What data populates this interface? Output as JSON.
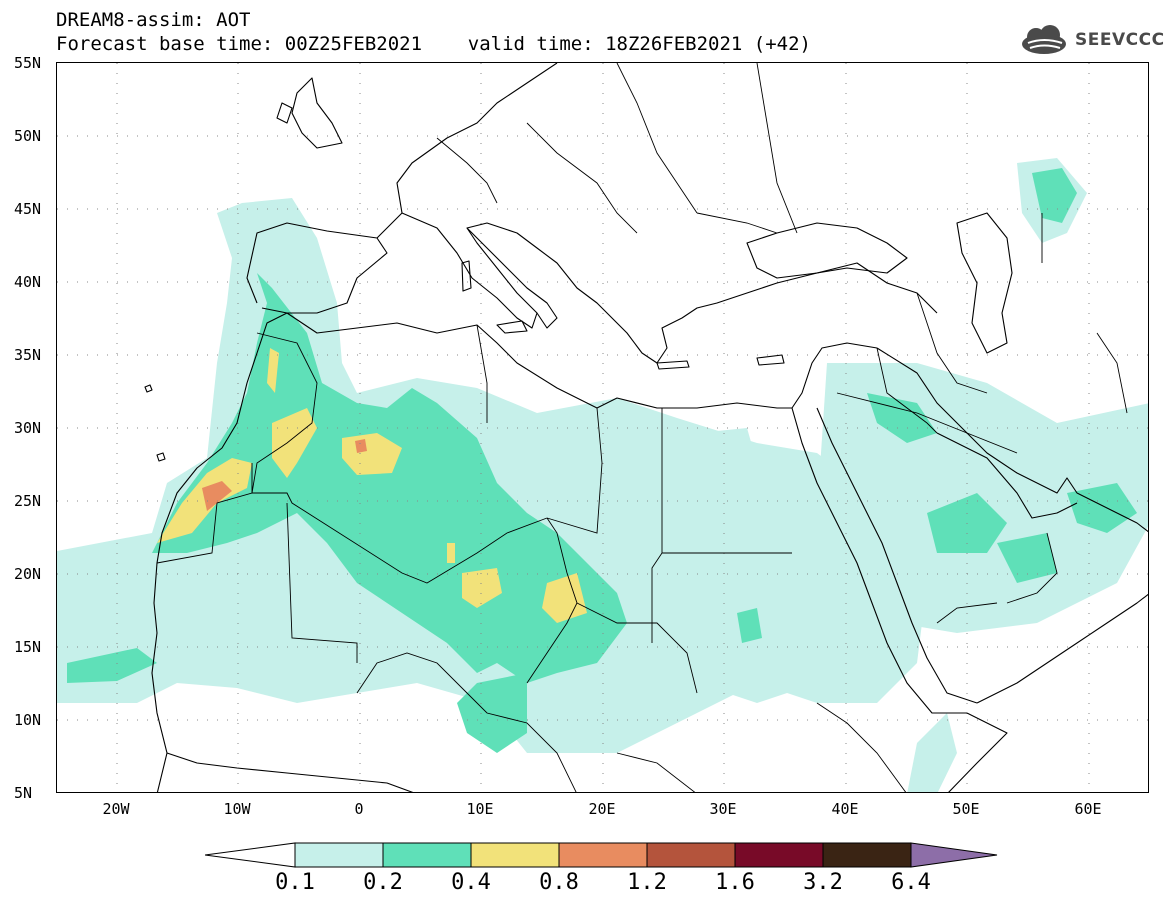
{
  "header": {
    "title_line1": "DREAM8-assim: AOT",
    "title_line2": "Forecast base time: 00Z25FEB2021    valid time: 18Z26FEB2021 (+42)",
    "logo_text": "SEEVCCC"
  },
  "map": {
    "product": "Aerosol optical thickness forecast",
    "lat_labels": [
      "55N",
      "50N",
      "45N",
      "40N",
      "35N",
      "30N",
      "25N",
      "20N",
      "15N",
      "10N",
      "5N"
    ],
    "lon_labels": [
      "20W",
      "10W",
      "0",
      "10E",
      "20E",
      "30E",
      "40E",
      "50E",
      "60E"
    ],
    "lat_range": [
      5,
      55
    ],
    "lon_range": [
      -25,
      65
    ],
    "grid": "dotted",
    "coastline_color": "#000000"
  },
  "colorbar": {
    "levels": [
      "0.1",
      "0.2",
      "0.4",
      "0.8",
      "1.2",
      "1.6",
      "3.2",
      "6.4"
    ],
    "colors": [
      "#c6f0ea",
      "#5fe0b8",
      "#f2e27a",
      "#e88c60",
      "#b4543c",
      "#780a28",
      "#3a2414",
      "#8d6ea8"
    ],
    "under_color": "#ffffff"
  }
}
